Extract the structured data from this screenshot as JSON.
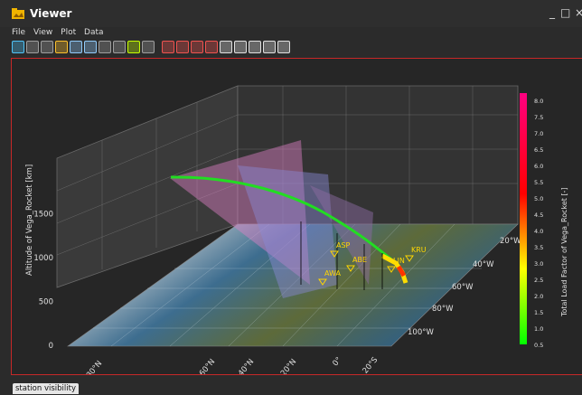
{
  "window": {
    "title": "Viewer",
    "minimize_glyph": "_",
    "maximize_glyph": "□",
    "close_glyph": "×"
  },
  "menu": [
    "File",
    "View",
    "Plot",
    "Data"
  ],
  "toolbar_icons": [
    {
      "name": "open-icon",
      "color": "#4fc3f7"
    },
    {
      "name": "save-icon",
      "color": "#9e9e9e"
    },
    {
      "name": "print-icon",
      "color": "#9e9e9e"
    },
    {
      "name": "image-icon",
      "color": "#fbc02d"
    },
    {
      "name": "split-vertical-icon",
      "color": "#90caf9"
    },
    {
      "name": "split-horizontal-icon",
      "color": "#90caf9"
    },
    {
      "name": "merge-icon",
      "color": "#9e9e9e"
    },
    {
      "name": "layout-icon",
      "color": "#9e9e9e"
    },
    {
      "name": "export-icon",
      "color": "#c6ff00"
    },
    {
      "name": "chart-icon",
      "color": "#9e9e9e"
    },
    {
      "name": "zoom-in-icon",
      "color": "#ef5350"
    },
    {
      "name": "zoom-out-icon",
      "color": "#ef5350"
    },
    {
      "name": "zoom-fit-icon",
      "color": "#ef5350"
    },
    {
      "name": "zoom-reset-icon",
      "color": "#ef5350"
    },
    {
      "name": "align-icon",
      "color": "#e0e0e0"
    },
    {
      "name": "axis-icon",
      "color": "#e0e0e0"
    },
    {
      "name": "axis-grid-icon",
      "color": "#e0e0e0"
    },
    {
      "name": "cube-icon",
      "color": "#e0e0e0"
    },
    {
      "name": "settings-icon",
      "color": "#e0e0e0"
    }
  ],
  "status_tab": "station visibility",
  "chart_data": {
    "type": "3d-trajectory",
    "zlabel": "Altitude of Vega_Rocket [km]",
    "z_ticks": [
      "0",
      "500",
      "1000",
      "1500"
    ],
    "x_ticks": [
      "80°N",
      "60°N",
      "40°N",
      "20°N",
      "0°",
      "20°S"
    ],
    "y_ticks": [
      "100°W",
      "80°W",
      "60°W",
      "40°W",
      "20°W"
    ],
    "stations": [
      "ASP",
      "ABE",
      "AWA",
      "KRU",
      "LIN"
    ],
    "colorbar": {
      "label": "Total Load Factor of Vega_Rocket [-]",
      "ticks": [
        "0.5",
        "1.0",
        "1.5",
        "2.0",
        "2.5",
        "3.0",
        "3.5",
        "4.0",
        "4.5",
        "5.0",
        "5.5",
        "6.0",
        "6.5",
        "7.0",
        "7.5",
        "8.0"
      ],
      "range": [
        0.5,
        8.0
      ],
      "colors": [
        "#00ff00",
        "#ffff00",
        "#ff8000",
        "#ff0000",
        "#ff0080"
      ]
    },
    "trajectory_color": "#22dd22",
    "grid": true
  }
}
